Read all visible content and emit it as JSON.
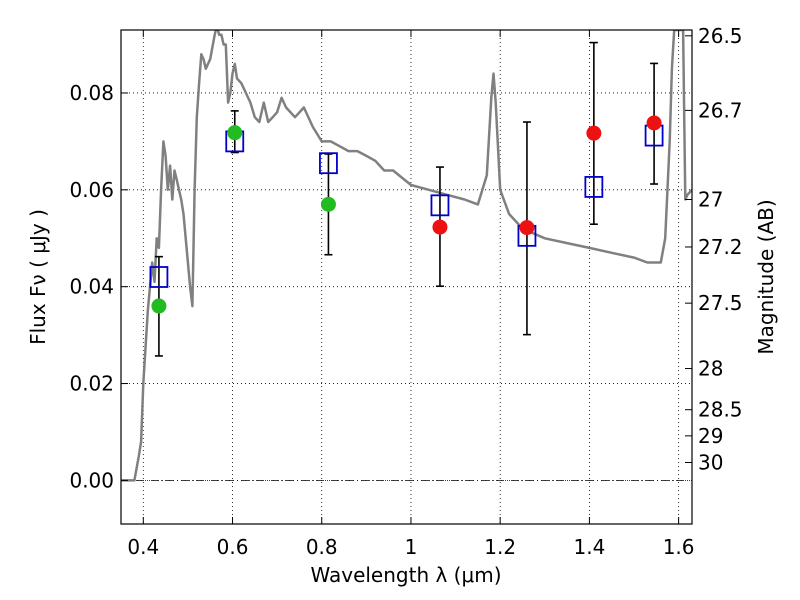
{
  "chart_data": {
    "type": "scatter",
    "xlabel": "Wavelength  λ (μm)",
    "ylabel": "Flux  Fν  ( μJy )",
    "ylabel_right": "Magnitude (AB)",
    "xlim": [
      0.35,
      1.63
    ],
    "ylim": [
      -0.009,
      0.093
    ],
    "x_ticks": [
      0.4,
      0.6,
      0.8,
      1.0,
      1.2,
      1.4,
      1.6
    ],
    "x_tick_labels": [
      "0.4",
      "0.6",
      "0.8",
      "1",
      "1.2",
      "1.4",
      "1.6"
    ],
    "y_ticks": [
      0.0,
      0.02,
      0.04,
      0.06,
      0.08
    ],
    "y_tick_labels": [
      "0.00",
      "0.02",
      "0.04",
      "0.06",
      "0.08"
    ],
    "right_ticks": [
      {
        "label": "26.5",
        "flux": 0.0918
      },
      {
        "label": "26.7",
        "flux": 0.0764
      },
      {
        "label": "27",
        "flux": 0.058
      },
      {
        "label": "27.2",
        "flux": 0.0482
      },
      {
        "label": "27.5",
        "flux": 0.0366
      },
      {
        "label": "28",
        "flux": 0.0231
      },
      {
        "label": "28.5",
        "flux": 0.0146
      },
      {
        "label": "29",
        "flux": 0.0092
      },
      {
        "label": "30",
        "flux": 0.0037
      }
    ],
    "grid": true,
    "colors": {
      "model": "#808080",
      "model_points": "#0000cc",
      "green_points": "#22bb22",
      "red_points": "#ee1111",
      "errorbars": "#000000"
    },
    "series": [
      {
        "kind": "model_sed",
        "x": [
          0.35,
          0.37,
          0.38,
          0.39,
          0.395,
          0.4,
          0.41,
          0.42,
          0.425,
          0.43,
          0.435,
          0.44,
          0.445,
          0.45,
          0.455,
          0.46,
          0.465,
          0.47,
          0.475,
          0.48,
          0.485,
          0.49,
          0.495,
          0.5,
          0.505,
          0.51,
          0.515,
          0.52,
          0.525,
          0.53,
          0.535,
          0.54,
          0.55,
          0.56,
          0.565,
          0.57,
          0.575,
          0.58,
          0.585,
          0.59,
          0.595,
          0.6,
          0.605,
          0.61,
          0.62,
          0.63,
          0.64,
          0.65,
          0.66,
          0.67,
          0.68,
          0.69,
          0.7,
          0.71,
          0.72,
          0.74,
          0.76,
          0.78,
          0.8,
          0.82,
          0.84,
          0.86,
          0.88,
          0.9,
          0.92,
          0.94,
          0.96,
          1.0,
          1.04,
          1.08,
          1.12,
          1.15,
          1.17,
          1.18,
          1.185,
          1.19,
          1.2,
          1.22,
          1.25,
          1.3,
          1.35,
          1.4,
          1.45,
          1.5,
          1.53,
          1.56,
          1.57,
          1.58,
          1.585,
          1.59,
          1.6,
          1.61,
          1.615,
          1.62,
          1.63
        ],
        "y": [
          0.0,
          0.0,
          0.0,
          0.005,
          0.008,
          0.02,
          0.035,
          0.045,
          0.041,
          0.05,
          0.048,
          0.06,
          0.07,
          0.067,
          0.06,
          0.065,
          0.058,
          0.064,
          0.062,
          0.06,
          0.058,
          0.055,
          0.05,
          0.045,
          0.04,
          0.036,
          0.06,
          0.075,
          0.082,
          0.088,
          0.087,
          0.085,
          0.087,
          0.092,
          0.094,
          0.092,
          0.092,
          0.09,
          0.09,
          0.078,
          0.08,
          0.084,
          0.086,
          0.083,
          0.082,
          0.08,
          0.078,
          0.075,
          0.074,
          0.078,
          0.074,
          0.075,
          0.076,
          0.079,
          0.077,
          0.075,
          0.077,
          0.073,
          0.07,
          0.07,
          0.069,
          0.068,
          0.068,
          0.067,
          0.066,
          0.064,
          0.064,
          0.061,
          0.06,
          0.059,
          0.058,
          0.057,
          0.063,
          0.079,
          0.084,
          0.078,
          0.06,
          0.055,
          0.052,
          0.05,
          0.049,
          0.048,
          0.047,
          0.046,
          0.045,
          0.045,
          0.05,
          0.07,
          0.085,
          0.093,
          0.093,
          0.093,
          0.058,
          0.059,
          0.06
        ]
      },
      {
        "kind": "model_points",
        "marker": "open-square",
        "x": [
          0.435,
          0.605,
          0.815,
          1.065,
          1.26,
          1.41,
          1.545
        ],
        "y": [
          0.042,
          0.07,
          0.0655,
          0.0568,
          0.0505,
          0.0606,
          0.0712
        ]
      },
      {
        "kind": "green_points",
        "marker": "circle",
        "x": [
          0.435,
          0.605,
          0.815
        ],
        "y": [
          0.036,
          0.0718,
          0.057
        ]
      },
      {
        "kind": "red_points",
        "marker": "circle",
        "x": [
          1.065,
          1.26,
          1.41,
          1.545
        ],
        "y": [
          0.0523,
          0.0522,
          0.0717,
          0.0738
        ]
      },
      {
        "kind": "errorbars",
        "x": [
          0.435,
          0.605,
          0.815,
          1.065,
          1.26,
          1.41,
          1.545
        ],
        "low": [
          0.0257,
          0.0677,
          0.0466,
          0.0401,
          0.0301,
          0.0529,
          0.0612
        ],
        "high": [
          0.0462,
          0.0763,
          0.0674,
          0.0647,
          0.074,
          0.0904,
          0.0861
        ]
      }
    ]
  }
}
